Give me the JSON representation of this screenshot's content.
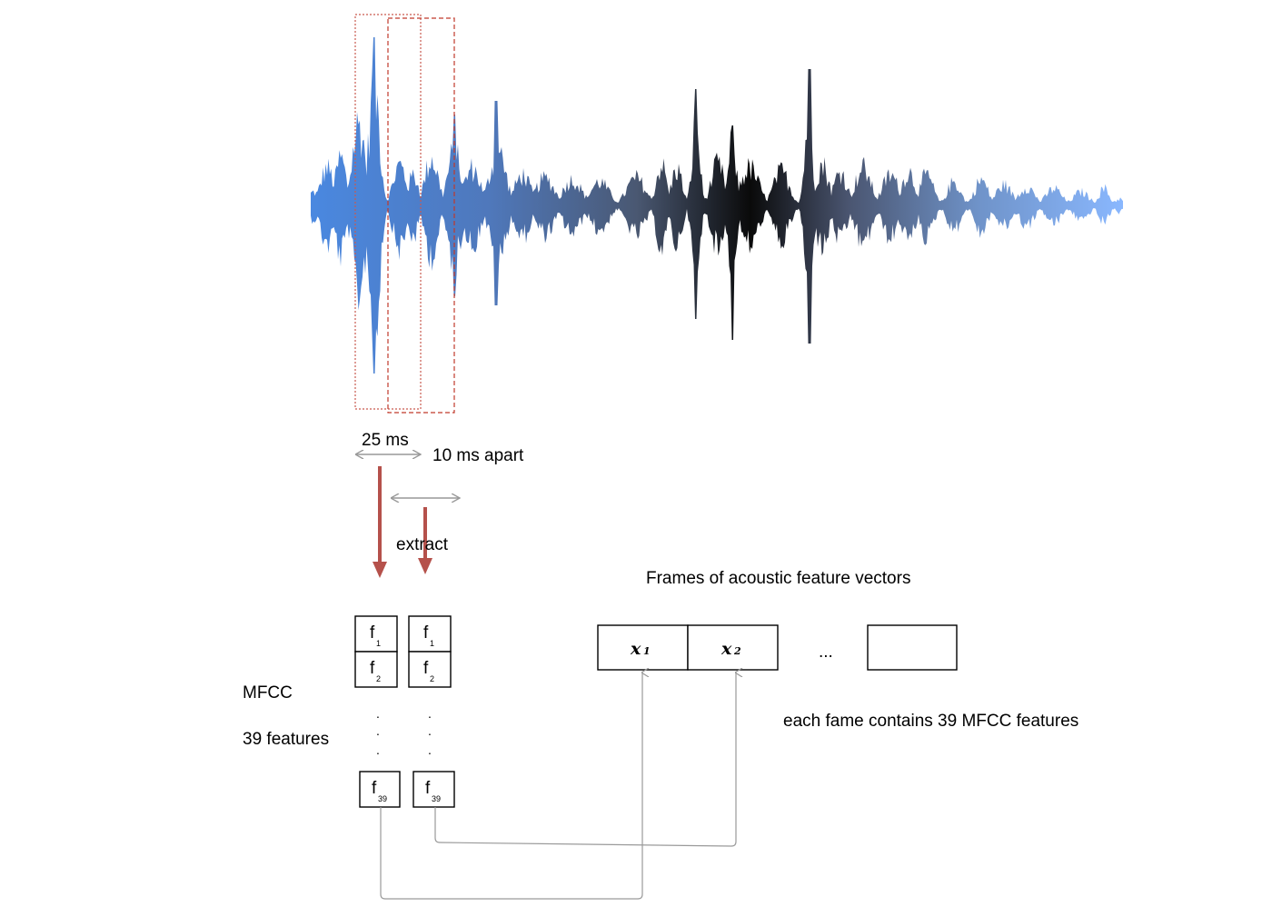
{
  "labels": {
    "window_length": "25 ms",
    "hop": "10 ms apart",
    "extract": "extract",
    "frames_title": "Frames of acoustic feature vectors",
    "mfcc": "MFCC",
    "features": "39 features",
    "each_frame": "each fame contains 39 MFCC features",
    "ellipsis": "...",
    "dot": "."
  },
  "feature_box": {
    "letter": "f",
    "sub_1": "1",
    "sub_2": "2",
    "sub_39": "39"
  },
  "frame_vectors": {
    "x1_letter": "x",
    "x1_sub": "1",
    "x2_letter": "x",
    "x2_sub": "2"
  },
  "colors": {
    "frame_outline": "#c0392b",
    "extract_arrow": "#b5514b",
    "connector": "#9a9a9a",
    "waveform_left": "#4a88e0",
    "waveform_mid": "#000000",
    "waveform_right": "#8ab8ff"
  }
}
